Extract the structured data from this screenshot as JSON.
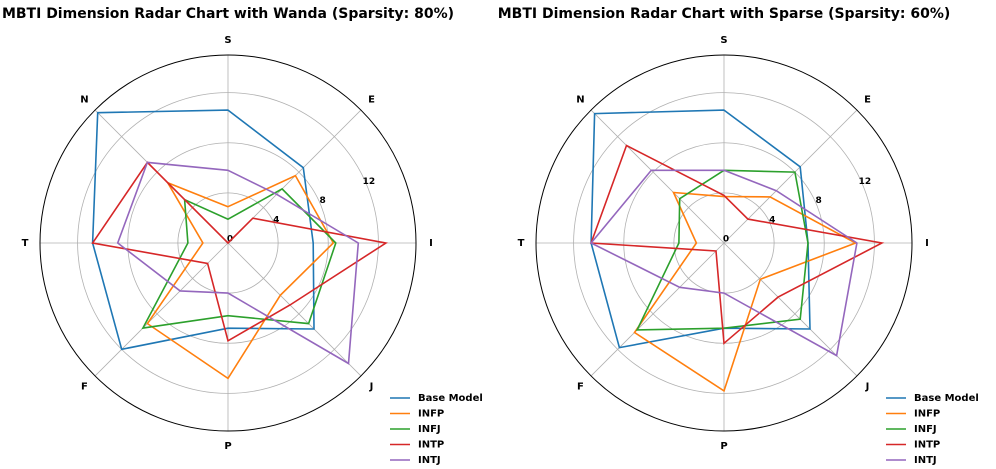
{
  "chart_data": [
    {
      "type": "radar",
      "title": "MBTI Dimension Radar Chart with Wanda (Sparsity: 80%)",
      "categories": [
        "S",
        "E",
        "I",
        "J",
        "P",
        "F",
        "T",
        "N"
      ],
      "rlim": [
        0,
        15
      ],
      "rticks": [
        0,
        4,
        8,
        12
      ],
      "grid": true,
      "legend": "lower right",
      "series": [
        {
          "name": "Base Model",
          "color": "#1f77b4",
          "values": [
            10.6,
            8.5,
            6.8,
            9.7,
            6.8,
            12,
            10.8,
            14.7
          ]
        },
        {
          "name": "INFP",
          "color": "#ff7f0e",
          "values": [
            2.9,
            7.6,
            8.4,
            5.9,
            10.8,
            9.1,
            2,
            6.8
          ]
        },
        {
          "name": "INFJ",
          "color": "#2ca02c",
          "values": [
            1.9,
            6.1,
            8.6,
            9.1,
            5.8,
            9.6,
            3.2,
            4.9
          ]
        },
        {
          "name": "INTP",
          "color": "#d62728",
          "values": [
            0,
            2.8,
            12.6,
            7,
            7.8,
            2.3,
            10.8,
            9.1
          ]
        },
        {
          "name": "INTJ",
          "color": "#9467bd",
          "values": [
            5.8,
            5.5,
            10.4,
            13.6,
            4,
            5.4,
            8.8,
            9.1
          ]
        }
      ]
    },
    {
      "type": "radar",
      "title": "MBTI Dimension Radar Chart with Sparse (Sparsity: 60%)",
      "categories": [
        "S",
        "E",
        "I",
        "J",
        "P",
        "F",
        "T",
        "N"
      ],
      "rlim": [
        0,
        15
      ],
      "rticks": [
        0,
        4,
        8,
        12
      ],
      "grid": true,
      "legend": "lower right",
      "series": [
        {
          "name": "Base Model",
          "color": "#1f77b4",
          "values": [
            10.6,
            8.6,
            6.7,
            9.7,
            6.8,
            11.8,
            10.6,
            14.6
          ]
        },
        {
          "name": "INFP",
          "color": "#ff7f0e",
          "values": [
            3.7,
            5.2,
            10.5,
            4.1,
            11.8,
            10.1,
            2.2,
            5.7
          ]
        },
        {
          "name": "INFJ",
          "color": "#2ca02c",
          "values": [
            5.8,
            8,
            6.7,
            8.6,
            6.8,
            9.8,
            3.6,
            5
          ]
        },
        {
          "name": "INTP",
          "color": "#d62728",
          "values": [
            3.8,
            2.7,
            12.6,
            6.1,
            8,
            0.9,
            10.6,
            11
          ]
        },
        {
          "name": "INTJ",
          "color": "#9467bd",
          "values": [
            5.8,
            5.9,
            10.6,
            12.7,
            4,
            5,
            10.6,
            8.2
          ]
        }
      ]
    }
  ]
}
